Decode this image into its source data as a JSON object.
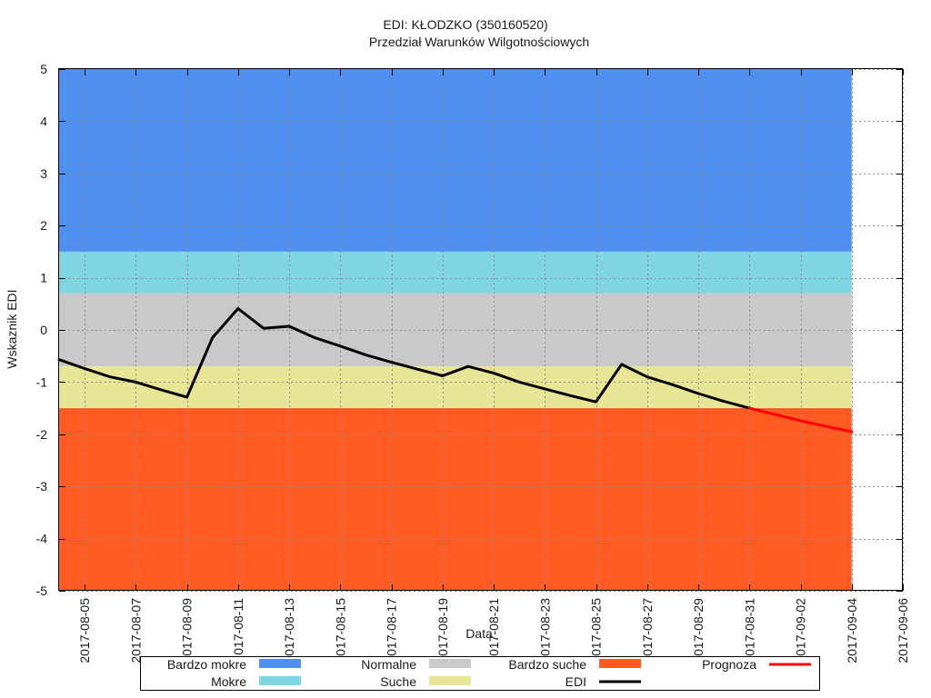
{
  "chart_data": {
    "type": "line",
    "title": "EDI:  KŁODZKO (350160520)",
    "subtitle": "Przedział Warunków Wilgotnościowych",
    "xlabel": "Data",
    "ylabel": "Wskaznik EDI",
    "x_type": "date",
    "xlim": [
      "2017-08-04",
      "2017-09-06"
    ],
    "ylim": [
      -5,
      5
    ],
    "x_ticks": [
      "2017-08-05",
      "2017-08-07",
      "2017-08-09",
      "2017-08-11",
      "2017-08-13",
      "2017-08-15",
      "2017-08-17",
      "2017-08-19",
      "2017-08-21",
      "2017-08-23",
      "2017-08-25",
      "2017-08-27",
      "2017-08-29",
      "2017-08-31",
      "2017-09-02",
      "2017-09-04",
      "2017-09-06"
    ],
    "y_ticks": [
      -5,
      -4,
      -3,
      -2,
      -1,
      0,
      1,
      2,
      3,
      4,
      5
    ],
    "grid": true,
    "bands_x_end": "2017-09-04",
    "bands": [
      {
        "name": "Bardzo mokre",
        "y_range": [
          1.5,
          5
        ],
        "color": "#4f8fef"
      },
      {
        "name": "Mokre",
        "y_range": [
          0.7,
          1.5
        ],
        "color": "#7fd6e2"
      },
      {
        "name": "Normalne",
        "y_range": [
          -0.7,
          0.7
        ],
        "color": "#c9c9c9"
      },
      {
        "name": "Suche",
        "y_range": [
          -1.5,
          -0.7
        ],
        "color": "#e8e696"
      },
      {
        "name": "Bardzo suche",
        "y_range": [
          -5,
          -1.5
        ],
        "color": "#ff5b22"
      }
    ],
    "series": [
      {
        "name": "EDI",
        "color": "#000000",
        "x": [
          "2017-08-04",
          "2017-08-05",
          "2017-08-06",
          "2017-08-07",
          "2017-08-08",
          "2017-08-09",
          "2017-08-10",
          "2017-08-11",
          "2017-08-12",
          "2017-08-13",
          "2017-08-14",
          "2017-08-15",
          "2017-08-16",
          "2017-08-17",
          "2017-08-18",
          "2017-08-19",
          "2017-08-20",
          "2017-08-21",
          "2017-08-22",
          "2017-08-23",
          "2017-08-24",
          "2017-08-25",
          "2017-08-26",
          "2017-08-27",
          "2017-08-28",
          "2017-08-29",
          "2017-08-30",
          "2017-08-31"
        ],
        "y": [
          -0.57,
          -0.74,
          -0.9,
          -1.0,
          -1.15,
          -1.29,
          -0.15,
          0.41,
          0.03,
          0.07,
          -0.15,
          -0.31,
          -0.48,
          -0.62,
          -0.75,
          -0.88,
          -0.7,
          -0.83,
          -1.0,
          -1.13,
          -1.26,
          -1.38,
          -0.66,
          -0.9,
          -1.05,
          -1.22,
          -1.37,
          -1.5
        ]
      },
      {
        "name": "Prognoza",
        "color": "#ff0000",
        "x": [
          "2017-08-31",
          "2017-09-01",
          "2017-09-02",
          "2017-09-03",
          "2017-09-04"
        ],
        "y": [
          -1.5,
          -1.62,
          -1.74,
          -1.85,
          -1.95
        ]
      }
    ],
    "legend": {
      "placement": "bottom-center",
      "items": [
        {
          "label": "Bardzo mokre",
          "kind": "box",
          "color": "#4f8fef"
        },
        {
          "label": "Mokre",
          "kind": "box",
          "color": "#7fd6e2"
        },
        {
          "label": "Normalne",
          "kind": "box",
          "color": "#c9c9c9"
        },
        {
          "label": "Suche",
          "kind": "box",
          "color": "#e8e696"
        },
        {
          "label": "Bardzo suche",
          "kind": "box",
          "color": "#ff5b22"
        },
        {
          "label": "EDI",
          "kind": "line",
          "color": "#000000"
        },
        {
          "label": "Prognoza",
          "kind": "line",
          "color": "#ff0000"
        }
      ]
    }
  }
}
